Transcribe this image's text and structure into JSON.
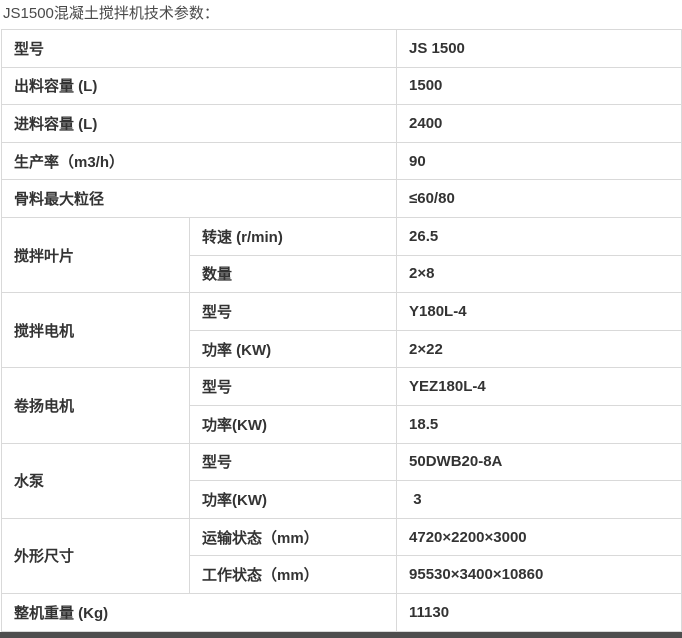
{
  "page_title": "JS1500混凝土搅拌机技术参数：",
  "colors": {
    "background": "#ffffff",
    "border": "#d9d9d9",
    "cell_text": "#333333",
    "title_text": "#4a4a4a",
    "footer_bar": "#4e4e4e"
  },
  "table": {
    "simple_rows_top": [
      {
        "label": "型号",
        "value": "JS 1500"
      },
      {
        "label": "出料容量 (L)",
        "value": "1500"
      },
      {
        "label": "进料容量 (L)",
        "value": "2400"
      },
      {
        "label": "生产率（m3/h）",
        "value": "90"
      },
      {
        "label": "骨料最大粒径",
        "value": "≤60/80"
      }
    ],
    "group_rows": [
      {
        "group": "搅拌叶片",
        "subs": [
          {
            "label": "转速 (r/min)",
            "value": "26.5"
          },
          {
            "label": "数量",
            "value": "2×8"
          }
        ]
      },
      {
        "group": "搅拌电机",
        "subs": [
          {
            "label": "型号",
            "value": "Y180L-4"
          },
          {
            "label": "功率 (KW)",
            "value": "2×22"
          }
        ]
      },
      {
        "group": "卷扬电机",
        "subs": [
          {
            "label": "型号",
            "value": "YEZ180L-4"
          },
          {
            "label": "功率(KW)",
            "value": "18.5"
          }
        ]
      },
      {
        "group": "水泵",
        "subs": [
          {
            "label": "型号",
            "value": "50DWB20-8A"
          },
          {
            "label": "功率(KW)",
            "value": " 3"
          }
        ]
      },
      {
        "group": "外形尺寸",
        "subs": [
          {
            "label": "运输状态（mm）",
            "value": "4720×2200×3000"
          },
          {
            "label": "工作状态（mm）",
            "value": "95530×3400×10860"
          }
        ]
      }
    ],
    "simple_rows_bottom": [
      {
        "label": "整机重量 (Kg)",
        "value": "11130"
      }
    ]
  }
}
